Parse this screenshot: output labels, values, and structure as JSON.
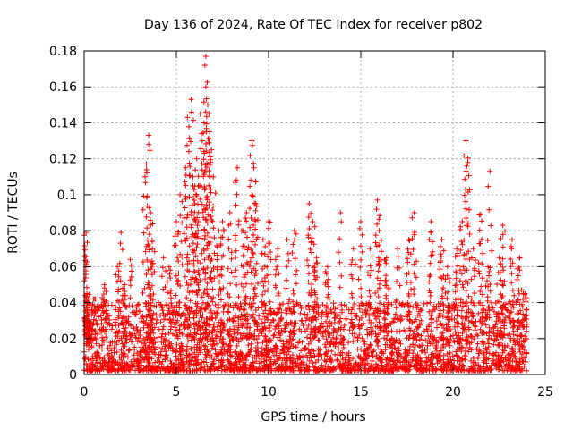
{
  "chart_data": {
    "type": "scatter",
    "title": "Day 136 of 2024, Rate Of TEC Index for receiver p802",
    "xlabel": "GPS time / hours",
    "ylabel": "ROTI / TECUs",
    "xlim": [
      0,
      25
    ],
    "ylim": [
      0,
      0.18
    ],
    "x_ticks": [
      "0",
      "5",
      "10",
      "15",
      "20",
      "25"
    ],
    "y_ticks": [
      "0",
      "0.02",
      "0.04",
      "0.06",
      "0.08",
      "0.1",
      "0.12",
      "0.14",
      "0.16",
      "0.18"
    ],
    "grid": true,
    "marker": "+",
    "marker_color": "#ff0000",
    "series": [
      {
        "x": [
          0.05,
          0.1,
          0.15,
          0.2,
          0.3,
          0.5,
          1.1,
          1.8,
          2.0,
          2.2,
          2.5,
          3.3,
          3.5,
          3.5,
          3.6,
          3.7,
          4.3,
          4.6,
          5.0,
          5.2,
          5.5,
          5.6,
          5.8,
          5.9,
          6.0,
          6.1,
          6.2,
          6.3,
          6.4,
          6.5,
          6.6,
          6.6,
          6.7,
          6.8,
          6.9,
          7.0,
          7.3,
          7.5,
          7.9,
          8.3,
          8.6,
          8.8,
          9.1,
          9.2,
          9.3,
          9.7,
          10.0,
          10.5,
          11.0,
          11.4,
          12.2,
          12.4,
          12.6,
          13.2,
          13.9,
          14.6,
          15.0,
          15.5,
          15.9,
          16.0,
          16.4,
          17.0,
          17.6,
          17.9,
          18.8,
          19.4,
          19.7,
          20.2,
          20.5,
          20.7,
          20.8,
          21.1,
          21.5,
          21.9,
          22.0,
          22.5,
          22.7,
          23.2,
          23.6,
          23.9
        ],
        "y": [
          0.066,
          0.079,
          0.045,
          0.03,
          0.02,
          0.042,
          0.05,
          0.06,
          0.079,
          0.05,
          0.064,
          0.11,
          0.128,
          0.133,
          0.09,
          0.07,
          0.065,
          0.06,
          0.085,
          0.1,
          0.115,
          0.143,
          0.153,
          0.11,
          0.095,
          0.12,
          0.09,
          0.145,
          0.13,
          0.14,
          0.177,
          0.16,
          0.15,
          0.135,
          0.125,
          0.11,
          0.08,
          0.085,
          0.09,
          0.115,
          0.08,
          0.09,
          0.13,
          0.115,
          0.095,
          0.075,
          0.085,
          0.07,
          0.075,
          0.08,
          0.095,
          0.085,
          0.065,
          0.06,
          0.09,
          0.07,
          0.085,
          0.07,
          0.097,
          0.08,
          0.065,
          0.07,
          0.075,
          0.09,
          0.085,
          0.075,
          0.06,
          0.07,
          0.085,
          0.13,
          0.118,
          0.07,
          0.089,
          0.06,
          0.113,
          0.065,
          0.083,
          0.075,
          0.065,
          0.045
        ],
        "y_bulk_range": [
          0.002,
          0.04
        ],
        "x_bulk_range": [
          0,
          24
        ]
      }
    ]
  }
}
